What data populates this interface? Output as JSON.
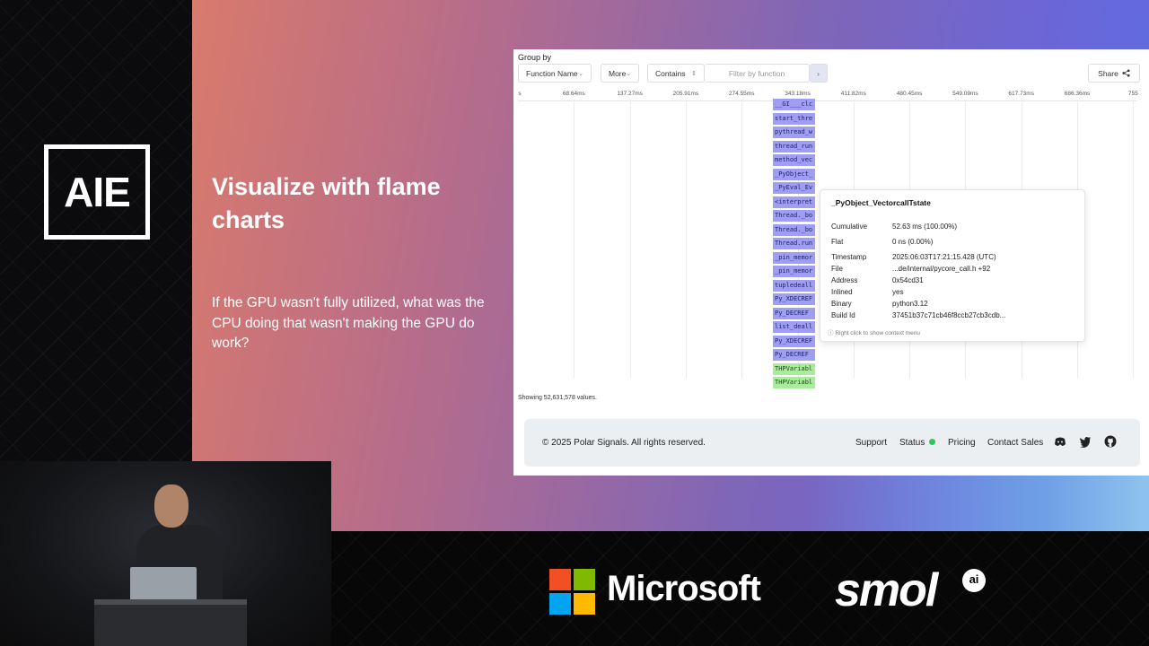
{
  "event_logo": "AIE",
  "slide": {
    "title": "Visualize with flame charts",
    "body": "If the GPU wasn't fully utilized, what was the CPU doing that wasn't making the GPU do work?"
  },
  "app": {
    "group_by_label": "Group by",
    "group_by_value": "Function Name",
    "more_label": "More",
    "match_mode": "Contains",
    "filter_placeholder": "Filter by function",
    "share_label": "Share",
    "axis_ticks": [
      "s",
      "68.64ms",
      "137.27ms",
      "205.91ms",
      "274.55ms",
      "343.18ms",
      "411.82ms",
      "480.45ms",
      "549.09ms",
      "617.73ms",
      "686.36ms",
      "755"
    ],
    "frames": [
      {
        "label": "__GI___clc",
        "kind": "py"
      },
      {
        "label": "start_thre",
        "kind": "py"
      },
      {
        "label": "pythread_w",
        "kind": "py"
      },
      {
        "label": "thread_run",
        "kind": "py"
      },
      {
        "label": "method_vec",
        "kind": "py"
      },
      {
        "label": "_PyObject_",
        "kind": "py"
      },
      {
        "label": "_PyEval_Ev",
        "kind": "py"
      },
      {
        "label": "<interpret",
        "kind": "py"
      },
      {
        "label": "Thread._bo",
        "kind": "py"
      },
      {
        "label": "Thread._bo",
        "kind": "py"
      },
      {
        "label": "Thread.run",
        "kind": "py"
      },
      {
        "label": "_pin_memor",
        "kind": "py"
      },
      {
        "label": "_pin_memor",
        "kind": "py"
      },
      {
        "label": "tupledeall",
        "kind": "py"
      },
      {
        "label": "Py_XDECREF",
        "kind": "py"
      },
      {
        "label": "Py_DECREF",
        "kind": "py"
      },
      {
        "label": "list_deall",
        "kind": "py"
      },
      {
        "label": "Py_XDECREF",
        "kind": "py"
      },
      {
        "label": "Py_DECREF",
        "kind": "py"
      },
      {
        "label": "THPVariabl",
        "kind": "thp"
      },
      {
        "label": "THPVariabl",
        "kind": "thp"
      }
    ],
    "tooltip": {
      "title": "_PyObject_VectorcallTstate",
      "rows": [
        {
          "key": "Cumulative",
          "value": "52.63 ms (100.00%)"
        },
        {
          "key": "Flat",
          "value": "0 ns (0.00%)"
        },
        {
          "key": "Timestamp",
          "value": "2025:06:03T17:21:15.428 (UTC)"
        },
        {
          "key": "File",
          "value": "...de/internal/pycore_call.h +92"
        },
        {
          "key": "Address",
          "value": "0x54cd31"
        },
        {
          "key": "Inlined",
          "value": "yes"
        },
        {
          "key": "Binary",
          "value": "python3.12"
        },
        {
          "key": "Build Id",
          "value": "37451b37c71cb46f8ccb27cb3cdb..."
        }
      ],
      "hint": "Right click to show context menu"
    },
    "showing_text": "Showing 52,631,578 values.",
    "footer": {
      "copyright": "© 2025 Polar Signals. All rights reserved.",
      "support": "Support",
      "status": "Status",
      "pricing": "Pricing",
      "contact": "Contact Sales",
      "status_color": "#32c35a",
      "icons": [
        "discord-icon",
        "twitter-icon",
        "github-icon"
      ]
    }
  },
  "sponsors": {
    "microsoft": "Microsoft",
    "smol": "smol",
    "smol_badge": "ai"
  },
  "colors": {
    "frame_python": "#9f9ef2",
    "frame_thp": "#a8ec9c"
  }
}
